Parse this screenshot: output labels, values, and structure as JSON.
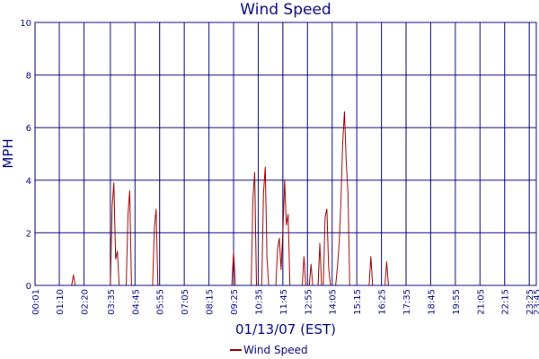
{
  "chart_data": {
    "type": "line",
    "title": "Wind Speed",
    "xlabel": "01/13/07 (EST)",
    "ylabel": "MPH",
    "ylim": [
      0,
      10
    ],
    "yticks": [
      "0",
      "2",
      "4",
      "6",
      "8",
      "10"
    ],
    "xlim": [
      "00:01",
      "23:45"
    ],
    "xticks": [
      "00:01",
      "01:10",
      "02:20",
      "03:35",
      "04:45",
      "05:55",
      "07:05",
      "08:15",
      "09:25",
      "10:35",
      "11:45",
      "12:55",
      "14:05",
      "15:15",
      "16:25",
      "17:35",
      "18:45",
      "19:55",
      "21:05",
      "22:15",
      "23:25",
      "23:45"
    ],
    "grid": true,
    "legend": "bottom",
    "series": [
      {
        "name": "Wind Speed",
        "color": "#990000",
        "points": [
          [
            "00:01",
            0
          ],
          [
            "01:45",
            0
          ],
          [
            "01:50",
            0.4
          ],
          [
            "01:55",
            0
          ],
          [
            "03:35",
            0
          ],
          [
            "03:40",
            3.0
          ],
          [
            "03:45",
            3.9
          ],
          [
            "03:50",
            1.0
          ],
          [
            "03:55",
            1.3
          ],
          [
            "04:00",
            0
          ],
          [
            "04:20",
            0
          ],
          [
            "04:25",
            2.7
          ],
          [
            "04:30",
            3.6
          ],
          [
            "04:35",
            0
          ],
          [
            "05:35",
            0
          ],
          [
            "05:40",
            2.2
          ],
          [
            "05:45",
            2.9
          ],
          [
            "05:50",
            0
          ],
          [
            "09:20",
            0
          ],
          [
            "09:25",
            1.3
          ],
          [
            "09:30",
            0
          ],
          [
            "10:15",
            0
          ],
          [
            "10:20",
            3.3
          ],
          [
            "10:25",
            4.3
          ],
          [
            "10:30",
            0
          ],
          [
            "10:45",
            0
          ],
          [
            "10:50",
            3.5
          ],
          [
            "10:55",
            4.5
          ],
          [
            "11:00",
            1.0
          ],
          [
            "11:05",
            0
          ],
          [
            "11:25",
            0
          ],
          [
            "11:30",
            1.4
          ],
          [
            "11:35",
            1.8
          ],
          [
            "11:40",
            0.6
          ],
          [
            "11:45",
            2.0
          ],
          [
            "11:50",
            4.0
          ],
          [
            "11:55",
            2.3
          ],
          [
            "12:00",
            2.7
          ],
          [
            "12:05",
            0
          ],
          [
            "12:40",
            0
          ],
          [
            "12:45",
            1.1
          ],
          [
            "12:50",
            0
          ],
          [
            "13:00",
            0
          ],
          [
            "13:05",
            0.8
          ],
          [
            "13:10",
            0
          ],
          [
            "13:25",
            0
          ],
          [
            "13:30",
            1.6
          ],
          [
            "13:35",
            0
          ],
          [
            "13:40",
            0
          ],
          [
            "13:45",
            2.6
          ],
          [
            "13:50",
            2.9
          ],
          [
            "13:55",
            0.7
          ],
          [
            "14:00",
            0
          ],
          [
            "14:15",
            0
          ],
          [
            "14:20",
            0.7
          ],
          [
            "14:25",
            1.6
          ],
          [
            "14:30",
            3.2
          ],
          [
            "14:35",
            5.4
          ],
          [
            "14:40",
            6.6
          ],
          [
            "14:45",
            4.7
          ],
          [
            "14:50",
            3.5
          ],
          [
            "14:55",
            0
          ],
          [
            "15:50",
            0
          ],
          [
            "15:55",
            1.1
          ],
          [
            "16:00",
            0
          ],
          [
            "16:35",
            0
          ],
          [
            "16:40",
            0.9
          ],
          [
            "16:45",
            0
          ],
          [
            "23:45",
            0
          ]
        ]
      }
    ]
  }
}
